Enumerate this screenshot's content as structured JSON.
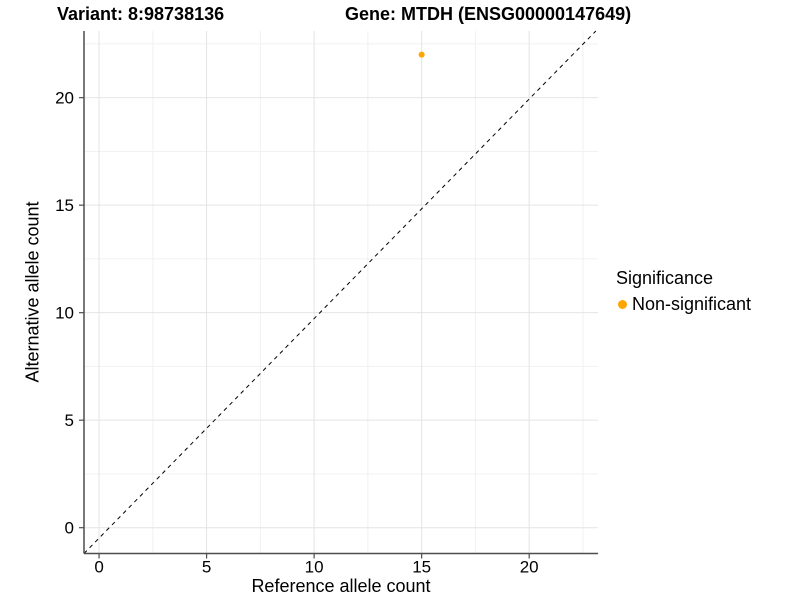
{
  "titles": {
    "variant": "Variant: 8:98738136",
    "gene": "Gene: MTDH (ENSG00000147649)"
  },
  "chart_data": {
    "type": "scatter",
    "title_left": "Variant: 8:98738136",
    "title_right": "Gene: MTDH (ENSG00000147649)",
    "xlabel": "Reference allele count",
    "ylabel": "Alternative allele count",
    "xlim": [
      -0.7,
      23.2
    ],
    "ylim": [
      -1.2,
      23.1
    ],
    "x_ticks": [
      0,
      5,
      10,
      15,
      20
    ],
    "y_ticks": [
      0,
      5,
      10,
      15,
      20
    ],
    "x_minor_ticks": [
      2.5,
      7.5,
      12.5,
      17.5,
      22.5
    ],
    "y_minor_ticks": [
      2.5,
      7.5,
      12.5,
      17.5,
      22.5
    ],
    "grid": true,
    "points": [
      {
        "x": 15,
        "y": 22,
        "series": "Non-significant",
        "color": "#FFA500"
      }
    ],
    "reference_line": {
      "type": "identity",
      "slope": 1,
      "intercept": 0,
      "style": "dashed",
      "color": "#000000"
    },
    "legend": {
      "title": "Significance",
      "position": "right",
      "items": [
        {
          "label": "Non-significant",
          "color": "#FFA500"
        }
      ]
    },
    "colors": {
      "point": "#FFA500",
      "grid_major": "#e4e4e4",
      "grid_minor": "#f1f1f1",
      "axis_line": "#4d4d4d",
      "tick_text": "#000000"
    }
  }
}
